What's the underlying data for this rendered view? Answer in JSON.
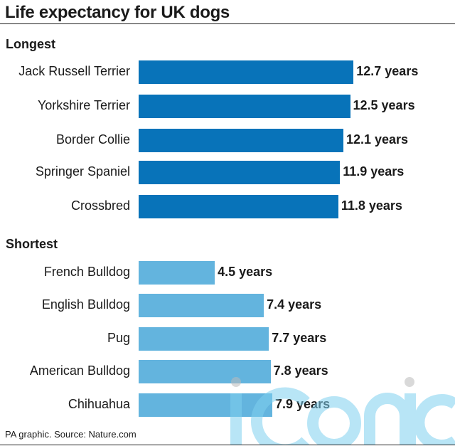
{
  "chart_data": {
    "type": "bar",
    "orientation": "horizontal",
    "title": "Life expectancy for UK dogs",
    "unit_suffix": " years",
    "xlim": [
      0,
      13
    ],
    "groups": [
      {
        "name": "Longest",
        "color": "#0873b9",
        "categories": [
          "Jack Russell Terrier",
          "Yorkshire Terrier",
          "Border Collie",
          "Springer Spaniel",
          "Crossbred"
        ],
        "values": [
          12.7,
          12.5,
          12.1,
          11.9,
          11.8
        ],
        "labels": [
          "12.7 years",
          "12.5 years",
          "12.1 years",
          "11.9 years",
          "11.8 years"
        ]
      },
      {
        "name": "Shortest",
        "color": "#63b4de",
        "categories": [
          "French Bulldog",
          "English Bulldog",
          "Pug",
          "American Bulldog",
          "Chihuahua"
        ],
        "values": [
          4.5,
          7.4,
          7.7,
          7.8,
          7.9
        ],
        "labels": [
          "4.5 years",
          "7.4 years",
          "7.7 years",
          "7.8 years",
          "7.9 years"
        ]
      }
    ],
    "source": "PA graphic. Source: Nature.com"
  },
  "watermark": "iconic"
}
